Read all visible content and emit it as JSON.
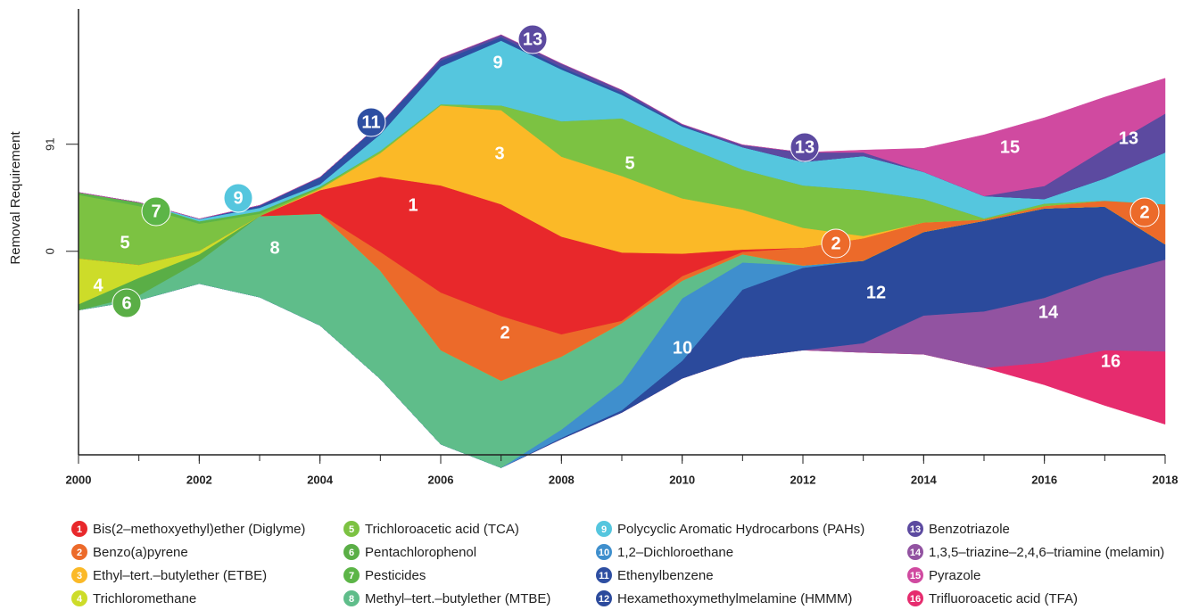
{
  "chart_data": {
    "type": "streamgraph",
    "y_label": "Removal Requirement",
    "x": [
      2000,
      2001,
      2002,
      2003,
      2004,
      2005,
      2006,
      2007,
      2008,
      2009,
      2010,
      2011,
      2012,
      2013,
      2014,
      2015,
      2016,
      2017,
      2018
    ],
    "xlim": [
      2000,
      2018
    ],
    "xticks": [
      2000,
      2002,
      2004,
      2006,
      2008,
      2010,
      2012,
      2014,
      2016,
      2018
    ],
    "ylim": [
      -173,
      206
    ],
    "yticks": [
      0,
      91
    ],
    "series": [
      {
        "label": "1",
        "name": "Bis(2–methoxyethyl)ether (Diglyme)",
        "color": "#e8282b",
        "values": [
          0,
          0,
          0,
          0,
          20,
          64,
          91,
          95,
          83,
          58,
          19,
          2,
          0,
          0,
          0,
          0,
          0,
          0,
          0
        ]
      },
      {
        "label": "2",
        "name": "Benzo(a)pyrene",
        "color": "#ec6a2a",
        "values": [
          0,
          0,
          0,
          0,
          0,
          16,
          49,
          55,
          19,
          2,
          4,
          2,
          15,
          19,
          8,
          1,
          2,
          5,
          34
        ]
      },
      {
        "label": "3",
        "name": "Ethyl–tert.–butylether (ETBE)",
        "color": "#fbb927",
        "values": [
          0,
          0,
          0,
          0,
          1,
          20,
          68,
          80,
          68,
          65,
          47,
          34,
          17,
          2,
          0,
          0,
          0,
          0,
          0
        ]
      },
      {
        "label": "4",
        "name": "Trichloromethane",
        "color": "#cddc29",
        "values": [
          39,
          11,
          3,
          0,
          0,
          0,
          0,
          0,
          0,
          0,
          0,
          0,
          0,
          0,
          0,
          0,
          0,
          0,
          0
        ]
      },
      {
        "label": "5",
        "name": "Trichloroacetic acid (TCA)",
        "color": "#7cc242",
        "values": [
          54,
          50,
          23,
          2,
          1,
          2,
          1,
          4,
          30,
          49,
          45,
          34,
          36,
          39,
          20,
          1,
          2,
          0,
          0
        ]
      },
      {
        "label": "6",
        "name": "Pentachlorophenol",
        "color": "#5aae46",
        "values": [
          5,
          15,
          6,
          0,
          0,
          0,
          0,
          0,
          0,
          0,
          0,
          0,
          0,
          0,
          0,
          0,
          0,
          0,
          0
        ]
      },
      {
        "label": "7",
        "name": "Pesticides",
        "color": "#5cb547",
        "values": [
          2,
          3,
          2,
          2,
          1,
          0,
          0,
          0,
          0,
          0,
          0,
          0,
          0,
          0,
          0,
          0,
          0,
          0,
          0
        ]
      },
      {
        "label": "8",
        "name": "Methyl–tert.–butylether (MTBE)",
        "color": "#5fbd8a",
        "values": [
          0,
          4,
          19,
          69,
          95,
          92,
          80,
          74,
          62,
          51,
          15,
          7,
          0,
          0,
          0,
          0,
          0,
          0,
          0
        ]
      },
      {
        "label": "9",
        "name": "Polycyclic Aromatic Hydrocarbons (PAHs)",
        "color": "#55c6de",
        "values": [
          0,
          0,
          2,
          3,
          2,
          14,
          32,
          55,
          44,
          20,
          16,
          19,
          20,
          29,
          23,
          19,
          4,
          19,
          44
        ]
      },
      {
        "label": "10",
        "name": "1,2–Dichloroethane",
        "color": "#3f8fcd",
        "values": [
          0,
          0,
          0,
          0,
          0,
          0,
          0,
          0,
          7,
          23,
          53,
          23,
          2,
          0,
          0,
          0,
          0,
          0,
          0
        ]
      },
      {
        "label": "11",
        "name": "Ethenylbenzene",
        "color": "#2e4fa2",
        "values": [
          0,
          0,
          0,
          2,
          6,
          9,
          5,
          3,
          2,
          2,
          1,
          0,
          0,
          0,
          0,
          0,
          0,
          0,
          0
        ]
      },
      {
        "label": "12",
        "name": "Hexamethoxymethylmelamine (HMMM)",
        "color": "#2b4a9c",
        "values": [
          0,
          0,
          0,
          0,
          0,
          0,
          0,
          0,
          1,
          2,
          15,
          58,
          70,
          70,
          71,
          77,
          76,
          59,
          13
        ]
      },
      {
        "label": "13",
        "name": "Benzotriazole",
        "color": "#5c4aa0",
        "values": [
          0,
          0,
          0,
          0,
          0,
          0,
          2,
          2,
          3,
          2,
          1,
          2,
          8,
          3,
          0,
          0,
          11,
          25,
          33
        ]
      },
      {
        "label": "14",
        "name": "1,3,5–triazine–2,4,6–triamine (melamin)",
        "color": "#9253a1",
        "values": [
          0,
          0,
          0,
          0,
          0,
          0,
          0,
          0,
          0,
          0,
          0,
          0,
          0,
          8,
          33,
          48,
          55,
          63,
          78
        ]
      },
      {
        "label": "15",
        "name": "Pyrazole",
        "color": "#d04aa0",
        "values": [
          0,
          0,
          0,
          0,
          0,
          0,
          0,
          0,
          0,
          0,
          0,
          0,
          0,
          2,
          20,
          52,
          58,
          44,
          30
        ]
      },
      {
        "label": "16",
        "name": "Trifluoroacetic acid (TFA)",
        "color": "#e62c6e",
        "values": [
          0,
          0,
          0,
          0,
          0,
          0,
          0,
          0,
          0,
          0,
          0,
          0,
          0,
          0,
          0,
          0,
          19,
          47,
          62
        ]
      }
    ]
  }
}
